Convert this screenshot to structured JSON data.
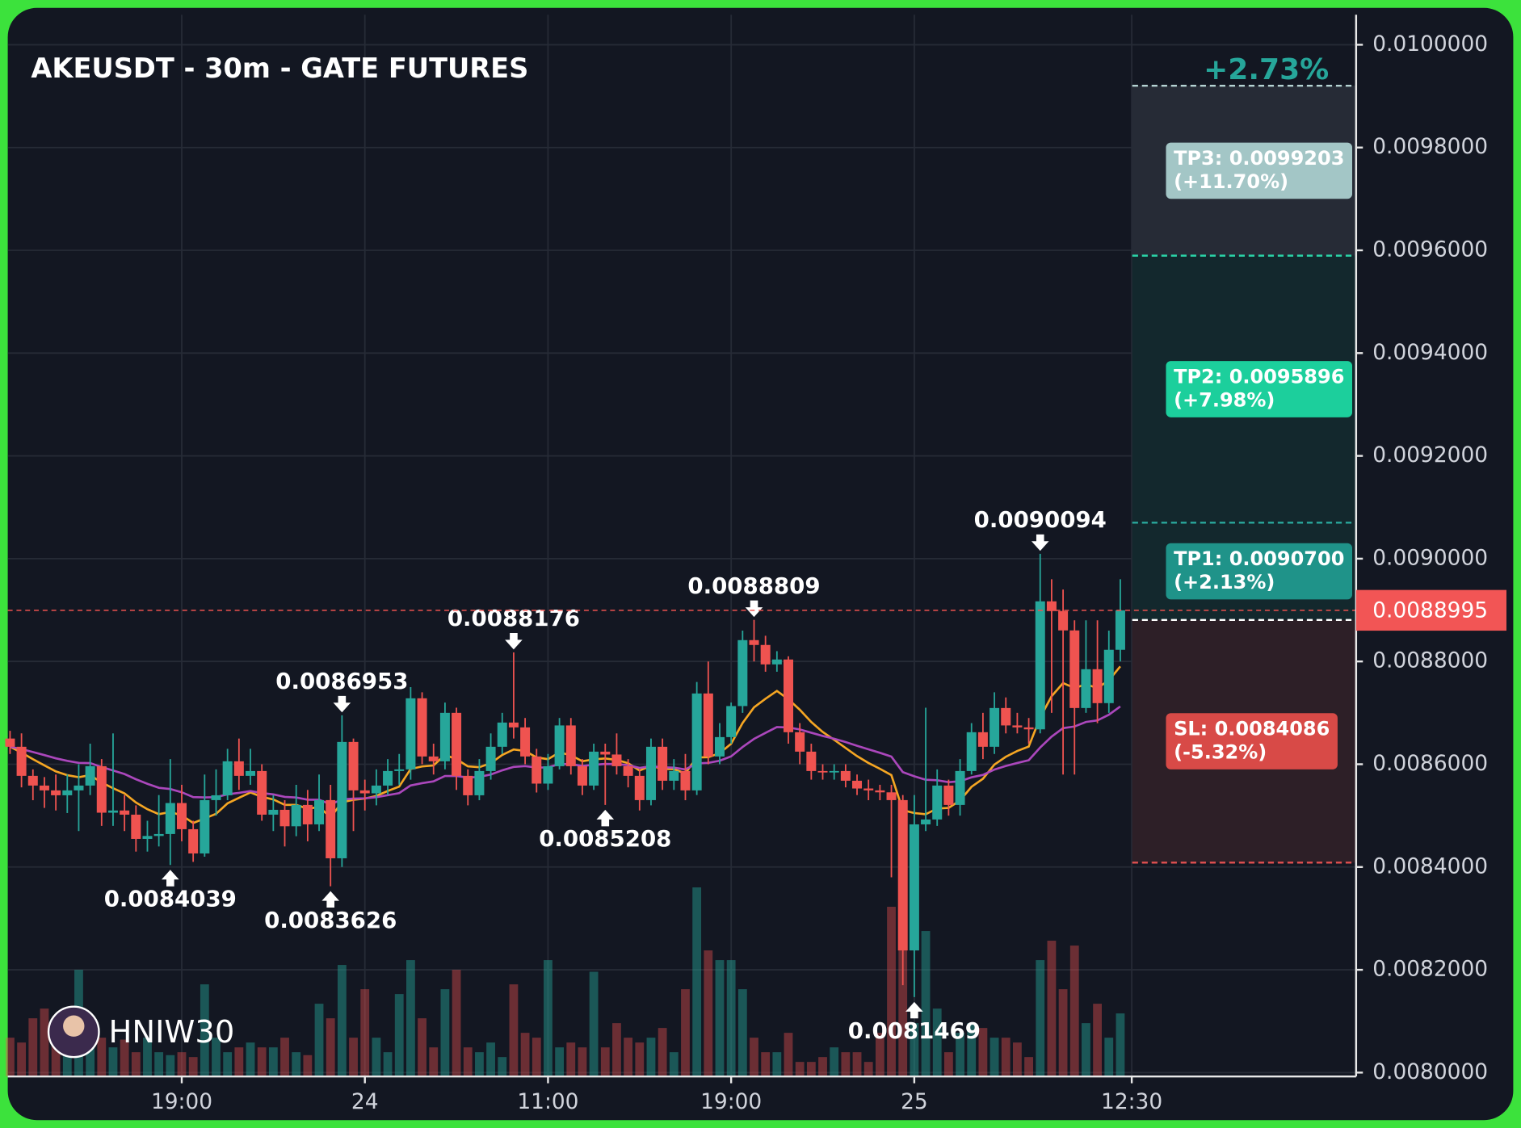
{
  "chart_data": {
    "type": "candlestick",
    "title": "AKEUSDT - 30m - GATE FUTURES",
    "watermark": "HNIW30",
    "pnl_label": "+2.73%",
    "up_color": "#26a69a",
    "down_color": "#ef5350",
    "grid": true,
    "xlim": [
      -0.2,
      117.6
    ],
    "xticks": [
      {
        "value": 15,
        "label": "19:00"
      },
      {
        "value": 31,
        "label": "24"
      },
      {
        "value": 47,
        "label": "11:00"
      },
      {
        "value": 63,
        "label": "19:00"
      },
      {
        "value": 79,
        "label": "25"
      },
      {
        "value": 98,
        "label": "12:30"
      }
    ],
    "ylim": [
      0.008,
      0.0100585
    ],
    "yticks": [
      {
        "value": 0.008,
        "label": "0.0080000"
      },
      {
        "value": 0.0082,
        "label": "0.0082000"
      },
      {
        "value": 0.0084,
        "label": "0.0084000"
      },
      {
        "value": 0.0086,
        "label": "0.0086000"
      },
      {
        "value": 0.0088,
        "label": "0.0088000"
      },
      {
        "value": 0.009,
        "label": "0.0090000"
      },
      {
        "value": 0.0092,
        "label": "0.0092000"
      },
      {
        "value": 0.0094,
        "label": "0.0094000"
      },
      {
        "value": 0.0096,
        "label": "0.0096000"
      },
      {
        "value": 0.0098,
        "label": "0.0098000"
      },
      {
        "value": 0.01,
        "label": "0.0100000"
      }
    ],
    "open": [
      0.00865,
      0.008634,
      0.0085774,
      0.0085585,
      0.0085491,
      0.0085396,
      0.0085491,
      0.0085585,
      0.0085962,
      0.0085057,
      0.00851,
      0.0085019,
      0.0084547,
      0.0084604,
      0.0084642,
      0.0085245,
      0.0084736,
      0.0084264,
      0.0085302,
      0.0085396,
      0.0086057,
      0.0085774,
      0.0085868,
      0.0085019,
      0.0085113,
      0.0084793,
      0.0085208,
      0.008483,
      0.0085302,
      0.008417,
      0.0086434,
      0.0085491,
      0.0085434,
      0.0085585,
      0.0085868,
      0.00859,
      0.0087283,
      0.0086151,
      0.0086057,
      0.0087,
      0.0085774,
      0.0085396,
      0.0085868,
      0.008634,
      0.0086811,
      0.0086717,
      0.0086151,
      0.0085623,
      0.0085962,
      0.0086755,
      0.0085962,
      0.0085585,
      0.0086245,
      0.0086189,
      0.0085962,
      0.0085774,
      0.0085302,
      0.008634,
      0.0085679,
      0.0085868,
      0.0085491,
      0.0087377,
      0.0086151,
      0.0086528,
      0.0087132,
      0.0088415,
      0.0088321,
      0.0087943,
      0.0088038,
      0.0086623,
      0.0086245,
      0.0085868,
      0.0085849,
      0.0085868,
      0.0085679,
      0.0085528,
      0.0085491,
      0.0085453,
      0.0085302,
      0.0082377,
      0.008483,
      0.0084925,
      0.0085585,
      0.0085208,
      0.0085868,
      0.0086623,
      0.008634,
      0.0087094,
      0.0086755,
      0.0086717,
      0.0086679,
      0.008917,
      0.0088981,
      0.0088604,
      0.0087094,
      0.0087849,
      0.0087189,
      0.0088227
    ],
    "high": [
      0.008665,
      0.00866,
      0.00859,
      0.008575,
      0.00858,
      0.00858,
      0.0086,
      0.00864,
      0.00861,
      0.00866,
      0.00854,
      0.00852,
      0.00849,
      0.00854,
      0.00861,
      0.00856,
      0.00849,
      0.00858,
      0.00859,
      0.00863,
      0.00865,
      0.00863,
      0.0086,
      0.00854,
      0.00853,
      0.00856,
      0.00855,
      0.00858,
      0.00856,
      0.0086953,
      0.00865,
      0.00857,
      0.00859,
      0.00861,
      0.00862,
      0.00875,
      0.00874,
      0.00864,
      0.00872,
      0.00871,
      0.00859,
      0.00861,
      0.00866,
      0.0087,
      0.0088176,
      0.00869,
      0.00863,
      0.00862,
      0.00869,
      0.00869,
      0.00861,
      0.00864,
      0.00864,
      0.00866,
      0.00861,
      0.00859,
      0.00865,
      0.00865,
      0.00861,
      0.00862,
      0.00876,
      0.0088,
      0.00868,
      0.00872,
      0.00886,
      0.0088809,
      0.00885,
      0.00882,
      0.00881,
      0.00868,
      0.00864,
      0.0086,
      0.0086,
      0.0086,
      0.00858,
      0.00857,
      0.00856,
      0.00856,
      0.00854,
      0.00854,
      0.00871,
      0.00859,
      0.00857,
      0.00861,
      0.00868,
      0.0087,
      0.00874,
      0.00873,
      0.0087,
      0.00869,
      0.0090094,
      0.00896,
      0.00894,
      0.00888,
      0.00888,
      0.00888,
      0.00886,
      0.00896
    ],
    "low": [
      0.00862,
      0.008555,
      0.00853,
      0.008515,
      0.00851,
      0.008505,
      0.00847,
      0.00854,
      0.00848,
      0.00848,
      0.00847,
      0.00843,
      0.00843,
      0.00844,
      0.0084039,
      0.00845,
      0.00841,
      0.00842,
      0.0085,
      0.00853,
      0.00855,
      0.00856,
      0.00849,
      0.00847,
      0.00844,
      0.00846,
      0.00845,
      0.00847,
      0.0083626,
      0.0084,
      0.00847,
      0.00851,
      0.00852,
      0.00854,
      0.00856,
      0.00857,
      0.0086,
      0.00858,
      0.00859,
      0.00855,
      0.00852,
      0.00853,
      0.00857,
      0.00862,
      0.00865,
      0.0086,
      0.008545,
      0.00855,
      0.00859,
      0.00858,
      0.00854,
      0.00855,
      0.0085208,
      0.00858,
      0.008555,
      0.00851,
      0.00852,
      0.00855,
      0.00855,
      0.00853,
      0.00854,
      0.0086,
      0.0086,
      0.00864,
      0.0087,
      0.0088,
      0.00878,
      0.00878,
      0.00864,
      0.0086,
      0.00857,
      0.00857,
      0.00857,
      0.008555,
      0.00854,
      0.00853,
      0.00853,
      0.00838,
      0.00817,
      0.0081469,
      0.00847,
      0.00848,
      0.0085,
      0.0085,
      0.00858,
      0.00861,
      0.00862,
      0.00866,
      0.00866,
      0.00864,
      0.00866,
      0.0087,
      0.00858,
      0.00858,
      0.0087,
      0.00868,
      0.0087,
      0.0088
    ],
    "close": [
      0.008634,
      0.0085774,
      0.0085585,
      0.0085491,
      0.0085396,
      0.0085491,
      0.0085585,
      0.0085962,
      0.0085057,
      0.00851,
      0.0085019,
      0.0084547,
      0.0084604,
      0.0084642,
      0.0085245,
      0.0084736,
      0.0084264,
      0.0085302,
      0.0085396,
      0.0086057,
      0.0085774,
      0.0085868,
      0.0085019,
      0.0085113,
      0.0084793,
      0.0085208,
      0.008483,
      0.0085302,
      0.008417,
      0.0086434,
      0.0085491,
      0.0085434,
      0.0085585,
      0.0085868,
      0.00859,
      0.0087283,
      0.0086151,
      0.0086057,
      0.0087,
      0.0085774,
      0.0085396,
      0.0085868,
      0.008634,
      0.0086811,
      0.0086717,
      0.0086151,
      0.0085623,
      0.0085962,
      0.0086755,
      0.0085962,
      0.0085585,
      0.0086245,
      0.0086189,
      0.0085962,
      0.0085774,
      0.0085302,
      0.008634,
      0.0085679,
      0.0085868,
      0.0085491,
      0.0087377,
      0.0086151,
      0.0086528,
      0.0087132,
      0.0088415,
      0.0088321,
      0.0087943,
      0.0088038,
      0.0086623,
      0.0086245,
      0.0085868,
      0.0085849,
      0.0085868,
      0.0085679,
      0.0085528,
      0.0085491,
      0.0085453,
      0.0085302,
      0.0082377,
      0.008483,
      0.0084925,
      0.0085585,
      0.0085208,
      0.0085868,
      0.0086623,
      0.008634,
      0.0087094,
      0.0086755,
      0.0086717,
      0.0086679,
      0.008917,
      0.0088981,
      0.0088604,
      0.0087094,
      0.0087849,
      0.0087189,
      0.0088227,
      0.0088995
    ],
    "volume": [
      40,
      35,
      60,
      70,
      50,
      45,
      110,
      60,
      40,
      30,
      38,
      25,
      40,
      25,
      22,
      25,
      20,
      95,
      40,
      25,
      30,
      35,
      30,
      30,
      40,
      25,
      22,
      75,
      60,
      115,
      40,
      90,
      40,
      25,
      85,
      120,
      60,
      30,
      90,
      110,
      30,
      25,
      35,
      20,
      95,
      45,
      40,
      120,
      30,
      35,
      30,
      108,
      30,
      55,
      40,
      35,
      40,
      50,
      25,
      90,
      195,
      130,
      120,
      120,
      90,
      40,
      25,
      25,
      45,
      15,
      15,
      20,
      30,
      25,
      25,
      15,
      45,
      175,
      175,
      55,
      150,
      70,
      25,
      45,
      55,
      50,
      40,
      40,
      35,
      20,
      120,
      140,
      90,
      135,
      55,
      75,
      40,
      65
    ],
    "pivot_highs": [
      29,
      44,
      65,
      90
    ],
    "pivot_lows": [
      14,
      28,
      52,
      79
    ],
    "moving_averages": [
      {
        "period": 9,
        "color": "#f5a623"
      },
      {
        "period": 24,
        "color": "#ab47bc"
      }
    ],
    "entry": 0.0088808,
    "levels": [
      {
        "name": "TP3: 0.0099203",
        "change": "(+11.70%)",
        "value": 0.0099203,
        "color": "#a3c6c6",
        "line_color": "#b5d3d3",
        "zone_color": "#262b36"
      },
      {
        "name": "TP2: 0.0095896",
        "change": "(+7.98%)",
        "value": 0.0095896,
        "color": "#1ccf9c",
        "line_color": "#2bd4a8",
        "zone_color": "#13282d"
      },
      {
        "name": "TP1: 0.0090700",
        "change": "(+2.13%)",
        "value": 0.00907,
        "color": "#1f9389",
        "line_color": "#2aa79c",
        "zone_color": "#13282d"
      },
      {
        "name": "SL: 0.0084086",
        "change": "(-5.32%)",
        "value": 0.0084086,
        "color": "#d84a47",
        "line_color": "#e05050",
        "zone_color": "#2d1f27"
      }
    ]
  }
}
